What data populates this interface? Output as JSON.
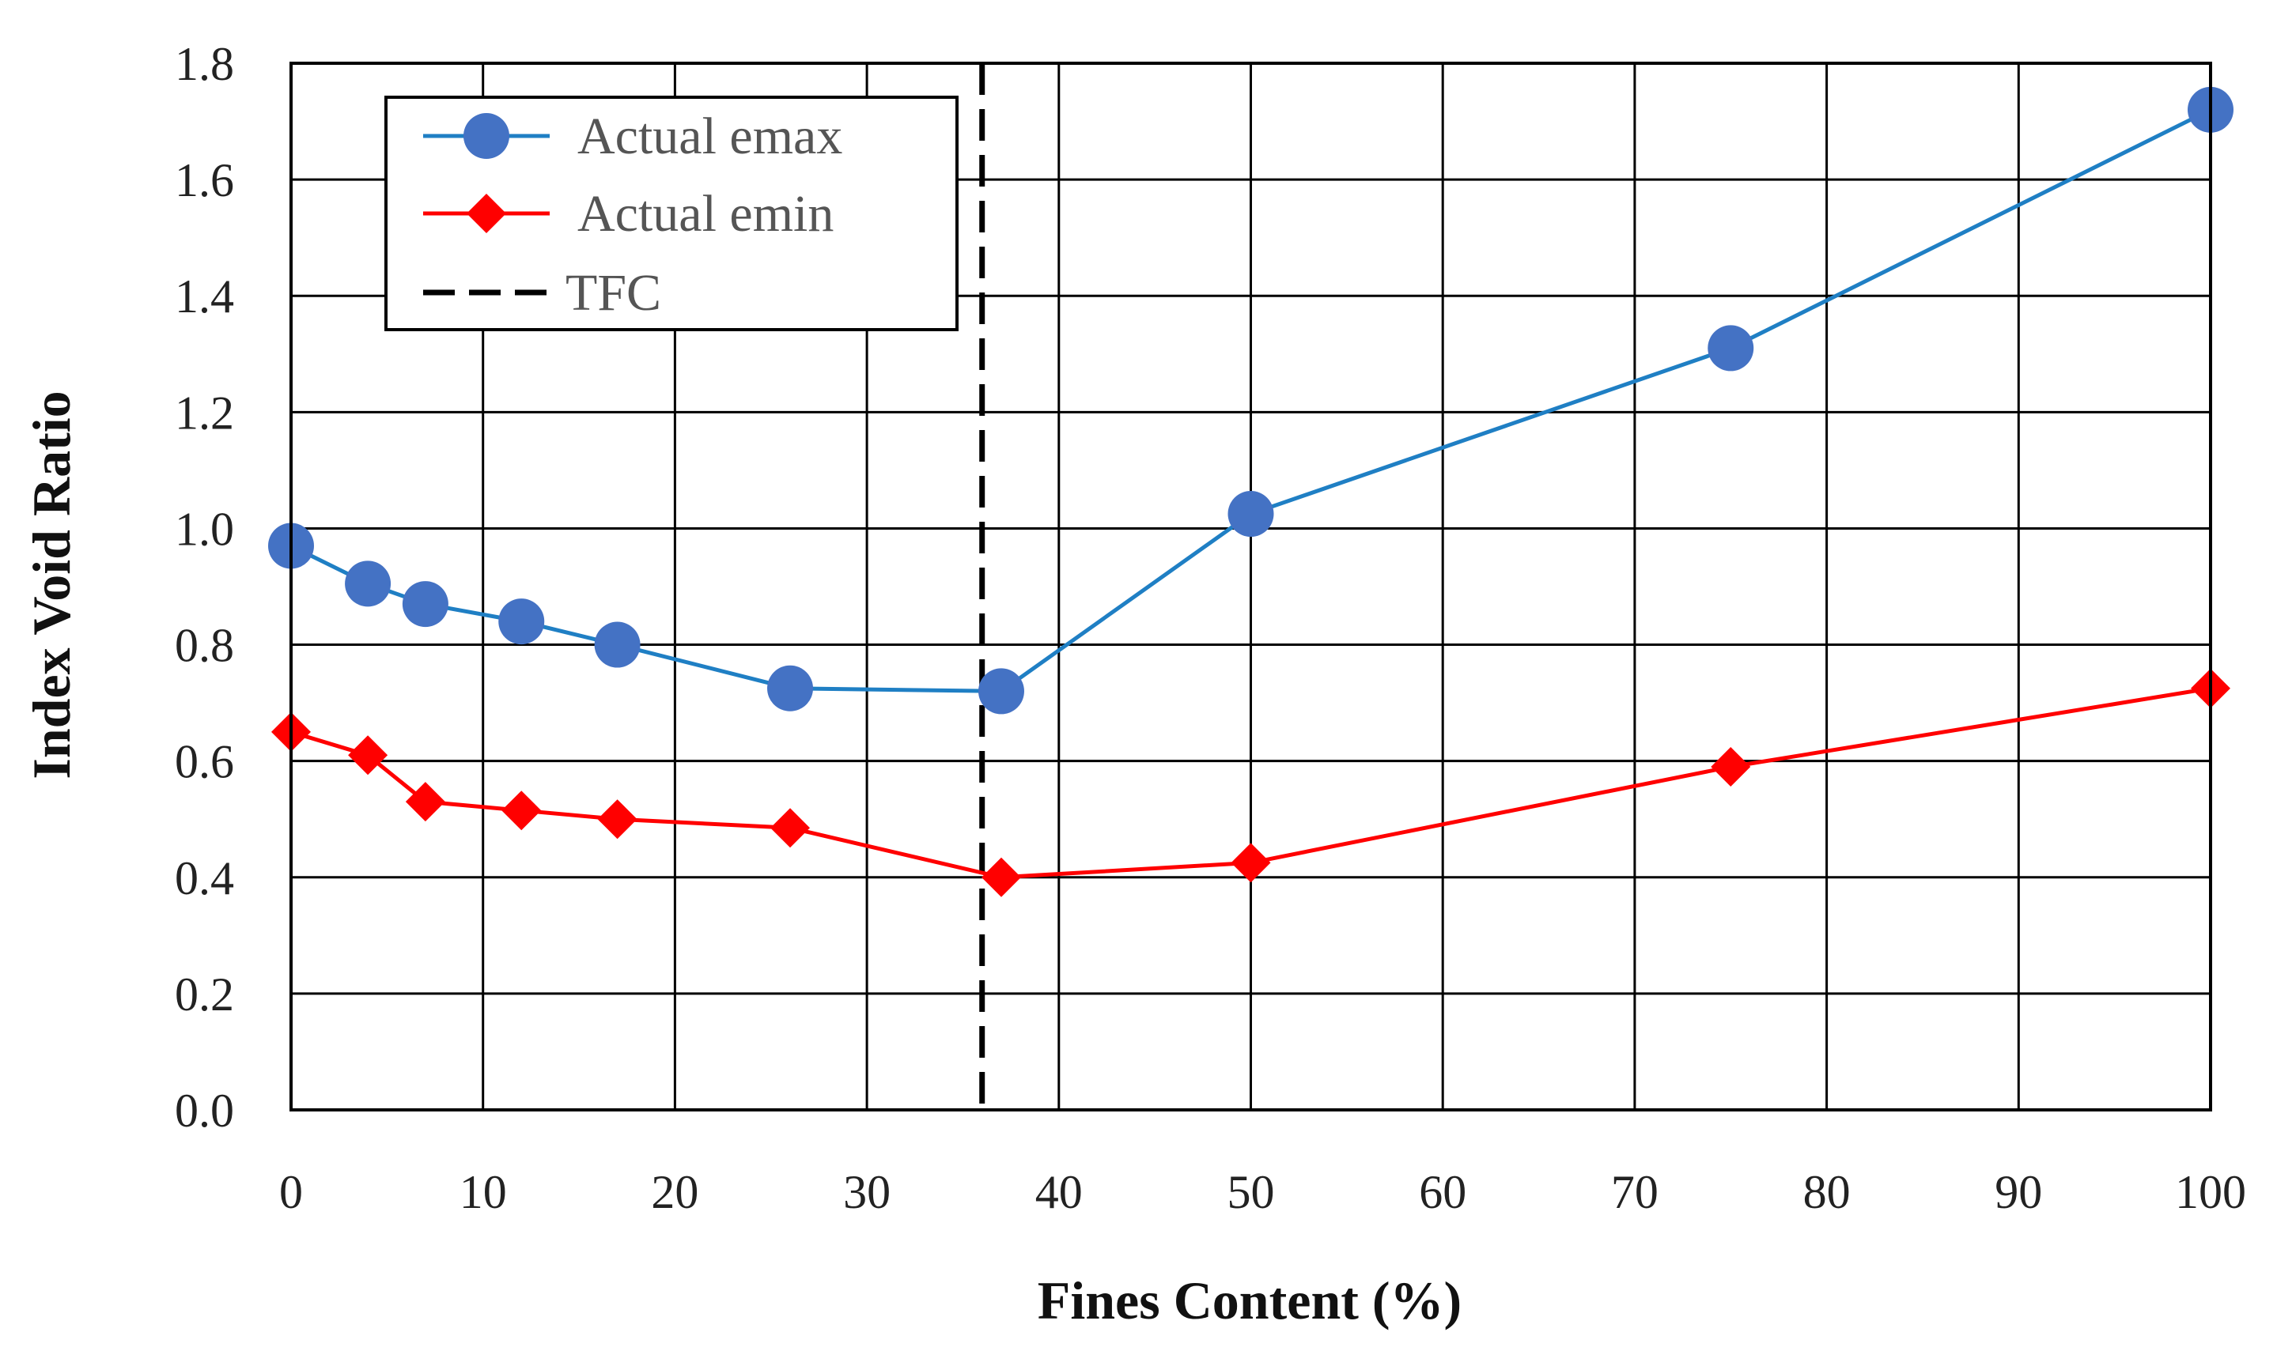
{
  "chart_data": {
    "type": "line",
    "xlabel": "Fines Content (%)",
    "ylabel": "Index Void Ratio",
    "xlim": [
      0,
      100
    ],
    "ylim": [
      0,
      1.8
    ],
    "x_ticks": [
      "0",
      "10",
      "20",
      "30",
      "40",
      "50",
      "60",
      "70",
      "80",
      "90",
      "100"
    ],
    "y_ticks": [
      "0.0",
      "0.2",
      "0.4",
      "0.6",
      "0.8",
      "1.0",
      "1.2",
      "1.4",
      "1.6",
      "1.8"
    ],
    "grid": true,
    "legend_position": "top-left",
    "series": [
      {
        "name": "Actual emax",
        "color": "#4472C4",
        "line_color": "#1f7fc4",
        "marker": "circle",
        "x": [
          0,
          4,
          7,
          12,
          17,
          26,
          37,
          50,
          75,
          100
        ],
        "y": [
          0.97,
          0.905,
          0.87,
          0.84,
          0.8,
          0.725,
          0.72,
          1.025,
          1.31,
          1.72
        ]
      },
      {
        "name": "Actual emin",
        "color": "#ff0000",
        "marker": "diamond",
        "x": [
          0,
          4,
          7,
          12,
          17,
          26,
          37,
          50,
          75,
          100
        ],
        "y": [
          0.65,
          0.61,
          0.53,
          0.515,
          0.5,
          0.485,
          0.4,
          0.425,
          0.59,
          0.725
        ]
      }
    ],
    "reference_lines": [
      {
        "name": "TFC",
        "orientation": "vertical",
        "x": 36,
        "style": "dashed",
        "color": "#000000"
      }
    ]
  }
}
